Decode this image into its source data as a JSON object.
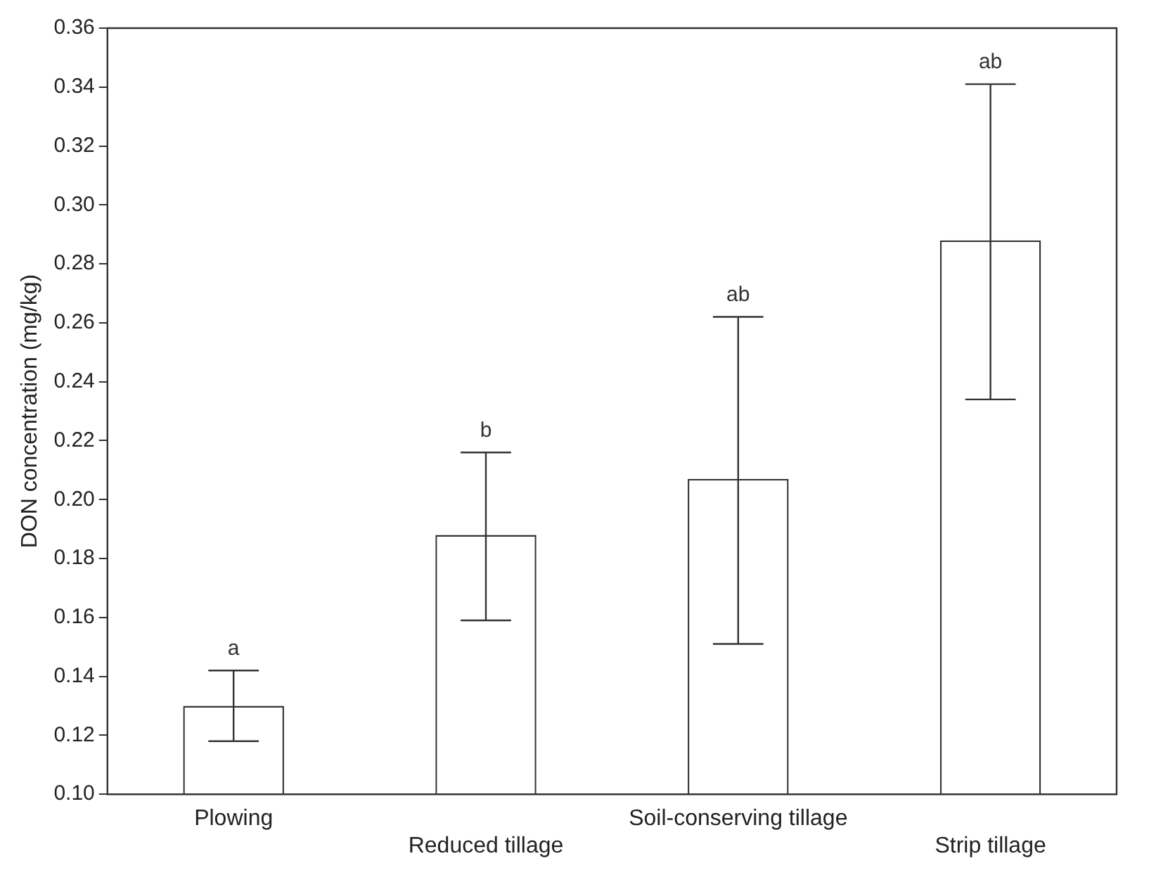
{
  "chart_data": {
    "type": "bar",
    "ylabel": "DON concentration (mg/kg)",
    "categories": [
      "Plowing",
      "Reduced tillage",
      "Soil-conserving tillage",
      "Strip tillage"
    ],
    "values": [
      0.13,
      0.188,
      0.207,
      0.288
    ],
    "errors": [
      [
        0.118,
        0.142
      ],
      [
        0.159,
        0.216
      ],
      [
        0.151,
        0.262
      ],
      [
        0.234,
        0.341
      ]
    ],
    "color": "#ffffff",
    "ylim": [
      0.1,
      0.36
    ],
    "yticks": [
      {
        "value": 0.1,
        "label": "0.10"
      },
      {
        "value": 0.12,
        "label": "0.12"
      },
      {
        "value": 0.14,
        "label": "0.14"
      },
      {
        "value": 0.16,
        "label": "0.16"
      },
      {
        "value": 0.18,
        "label": "0.18"
      },
      {
        "value": 0.2,
        "label": "0.20"
      },
      {
        "value": 0.22,
        "label": "0.22"
      },
      {
        "value": 0.24,
        "label": "0.24"
      },
      {
        "value": 0.26,
        "label": "0.26"
      },
      {
        "value": 0.28,
        "label": "0.28"
      },
      {
        "value": 0.3,
        "label": "0.30"
      },
      {
        "value": 0.32,
        "label": "0.32"
      },
      {
        "value": 0.34,
        "label": "0.34"
      },
      {
        "value": 0.36,
        "label": "0.36"
      }
    ],
    "annotations": [
      {
        "text": "a",
        "x": "Plowing",
        "y": 0.142
      },
      {
        "text": "b",
        "x": "Reduced tillage",
        "y": 0.216
      },
      {
        "text": "ab",
        "x": "Soil-conserving tillage",
        "y": 0.262
      },
      {
        "text": "ab",
        "x": "Strip tillage",
        "y": 0.341
      }
    ],
    "grid": false,
    "legend": false
  }
}
